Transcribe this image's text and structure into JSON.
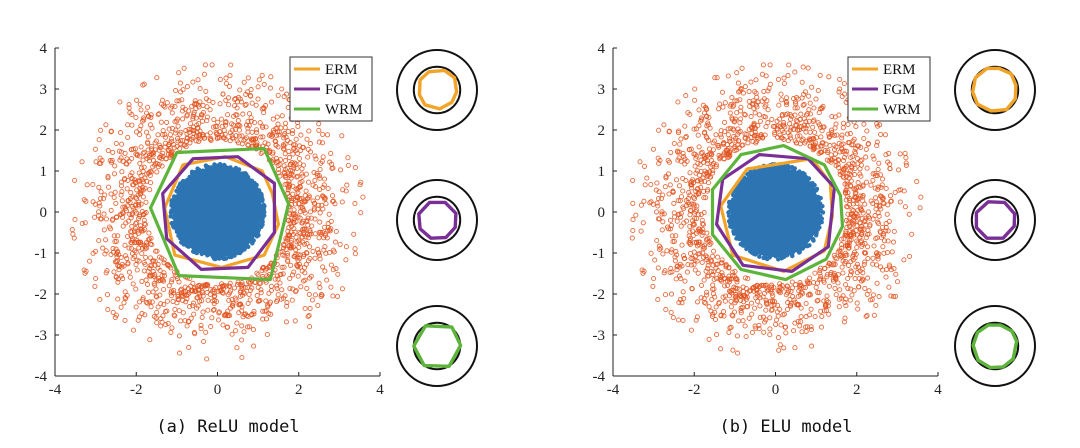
{
  "colors": {
    "background": "#ffffff",
    "axis": "#222222",
    "inner_points": "#2d74b3",
    "outer_points": "#e2541f",
    "ERM": "#f2a428",
    "FGM": "#7a2f97",
    "WRM": "#5db43b"
  },
  "chart_data": [
    {
      "type": "scatter",
      "caption": "(a) ReLU model",
      "xlim": [
        -4,
        4
      ],
      "ylim": [
        -4,
        4
      ],
      "xticks": [
        -4,
        -2,
        0,
        2,
        4
      ],
      "yticks": [
        4,
        3,
        2,
        1,
        0,
        -1,
        -2,
        -3,
        -4
      ],
      "grid": false,
      "legend_location": "top-right",
      "series": [
        {
          "name": "inner class",
          "type": "disk",
          "radius": 1.1
        },
        {
          "name": "outer class",
          "type": "ring",
          "inner_radius": 1.6,
          "outer_radius": 3.6
        },
        {
          "name": "ERM",
          "vertices": [
            [
              1.35,
              0.45
            ],
            [
              1.1,
              1.0
            ],
            [
              0.2,
              1.35
            ],
            [
              -0.85,
              1.15
            ],
            [
              -1.3,
              0.1
            ],
            [
              -1.05,
              -1.05
            ],
            [
              0.1,
              -1.35
            ],
            [
              1.15,
              -1.05
            ],
            [
              1.5,
              -0.3
            ]
          ]
        },
        {
          "name": "FGM",
          "vertices": [
            [
              1.4,
              0.7
            ],
            [
              0.5,
              1.35
            ],
            [
              -0.6,
              1.3
            ],
            [
              -1.35,
              0.45
            ],
            [
              -1.25,
              -0.65
            ],
            [
              -0.4,
              -1.4
            ],
            [
              0.75,
              -1.35
            ],
            [
              1.4,
              -0.5
            ]
          ]
        },
        {
          "name": "WRM",
          "vertices": [
            [
              1.75,
              0.2
            ],
            [
              1.15,
              1.55
            ],
            [
              -1.0,
              1.45
            ],
            [
              -1.65,
              0.1
            ],
            [
              -0.95,
              -1.55
            ],
            [
              1.3,
              -1.65
            ]
          ]
        }
      ],
      "insets": [
        {
          "method": "ERM",
          "radius": 1.25,
          "vertices": [
            [
              1.45,
              -0.15
            ],
            [
              1.3,
              0.9
            ],
            [
              0.55,
              1.45
            ],
            [
              -0.6,
              1.35
            ],
            [
              -1.25,
              0.75
            ],
            [
              -1.3,
              -0.35
            ],
            [
              -0.9,
              -1.1
            ],
            [
              0.2,
              -1.4
            ],
            [
              1.1,
              -0.9
            ]
          ]
        },
        {
          "method": "FGM",
          "radius": 1.15,
          "vertices": [
            [
              1.4,
              0.5
            ],
            [
              0.6,
              1.3
            ],
            [
              -0.55,
              1.3
            ],
            [
              -1.35,
              0.45
            ],
            [
              -1.25,
              -0.65
            ],
            [
              -0.45,
              -1.35
            ],
            [
              0.65,
              -1.3
            ],
            [
              1.35,
              -0.55
            ]
          ]
        },
        {
          "method": "WRM",
          "radius": 1.45,
          "vertices": [
            [
              1.75,
              0.05
            ],
            [
              1.1,
              1.4
            ],
            [
              -0.85,
              1.5
            ],
            [
              -1.72,
              0.0
            ],
            [
              -0.95,
              -1.45
            ],
            [
              0.9,
              -1.5
            ]
          ]
        }
      ]
    },
    {
      "type": "scatter",
      "caption": "(b) ELU model",
      "xlim": [
        -4,
        4
      ],
      "ylim": [
        -4,
        4
      ],
      "xticks": [
        -4,
        -2,
        0,
        2,
        4
      ],
      "yticks": [
        4,
        3,
        2,
        1,
        0,
        -1,
        -2,
        -3,
        -4
      ],
      "grid": false,
      "legend_location": "top-right",
      "series": [
        {
          "name": "inner class",
          "type": "disk",
          "radius": 1.1
        },
        {
          "name": "outer class",
          "type": "ring",
          "inner_radius": 1.6,
          "outer_radius": 3.6
        },
        {
          "name": "ERM",
          "vertices": [
            [
              1.35,
              0.7
            ],
            [
              0.9,
              1.3
            ],
            [
              -0.7,
              1.05
            ],
            [
              -1.35,
              0.15
            ],
            [
              -1.05,
              -1.05
            ],
            [
              0.2,
              -1.45
            ],
            [
              1.2,
              -0.95
            ],
            [
              1.4,
              -0.1
            ]
          ]
        },
        {
          "name": "FGM",
          "vertices": [
            [
              1.45,
              0.6
            ],
            [
              0.8,
              1.3
            ],
            [
              -0.4,
              1.4
            ],
            [
              -1.3,
              0.8
            ],
            [
              -1.45,
              -0.3
            ],
            [
              -0.8,
              -1.3
            ],
            [
              0.4,
              -1.45
            ],
            [
              1.3,
              -0.85
            ]
          ]
        },
        {
          "name": "WRM",
          "vertices": [
            [
              1.6,
              0.4
            ],
            [
              1.2,
              1.15
            ],
            [
              0.2,
              1.62
            ],
            [
              -0.85,
              1.4
            ],
            [
              -1.55,
              0.55
            ],
            [
              -1.55,
              -0.55
            ],
            [
              -0.85,
              -1.4
            ],
            [
              0.25,
              -1.65
            ],
            [
              1.25,
              -1.15
            ],
            [
              1.65,
              -0.35
            ]
          ]
        }
      ],
      "insets": [
        {
          "method": "ERM",
          "radius": 1.45,
          "vertices": [
            [
              1.55,
              0.35
            ],
            [
              1.2,
              1.2
            ],
            [
              0.3,
              1.6
            ],
            [
              -0.6,
              1.6
            ],
            [
              -1.45,
              0.9
            ],
            [
              -1.65,
              -0.15
            ],
            [
              -1.3,
              -1.05
            ],
            [
              -0.3,
              -1.55
            ],
            [
              0.85,
              -1.45
            ],
            [
              1.5,
              -0.65
            ]
          ]
        },
        {
          "method": "FGM",
          "radius": 1.3,
          "vertices": [
            [
              1.45,
              0.45
            ],
            [
              0.7,
              1.3
            ],
            [
              -0.5,
              1.35
            ],
            [
              -1.38,
              0.55
            ],
            [
              -1.38,
              -0.55
            ],
            [
              -0.6,
              -1.35
            ],
            [
              0.6,
              -1.35
            ],
            [
              1.42,
              -0.45
            ]
          ]
        },
        {
          "method": "WRM",
          "radius": 1.5,
          "vertices": [
            [
              1.6,
              0.35
            ],
            [
              1.25,
              1.1
            ],
            [
              0.4,
              1.55
            ],
            [
              -0.5,
              1.55
            ],
            [
              -1.3,
              1.0
            ],
            [
              -1.62,
              0.05
            ],
            [
              -1.25,
              -1.05
            ],
            [
              -0.35,
              -1.6
            ],
            [
              0.6,
              -1.55
            ],
            [
              1.35,
              -0.95
            ]
          ]
        }
      ]
    }
  ]
}
